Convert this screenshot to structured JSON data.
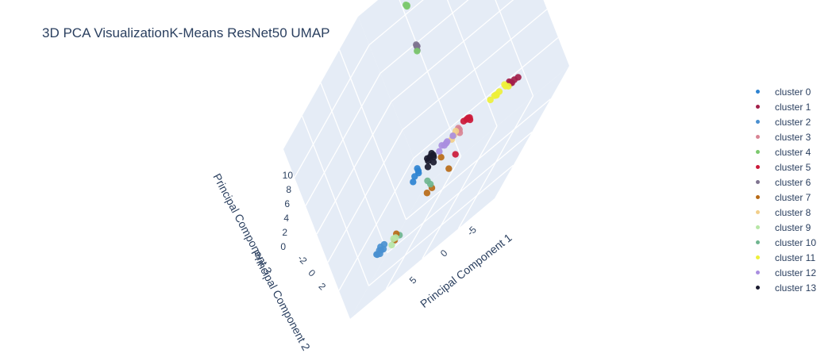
{
  "chart_data": {
    "type": "scatter",
    "title": "3D PCA VisualizationK-Means ResNet50 UMAP",
    "axes": {
      "x": {
        "title": "Principal Component 1",
        "ticks": [
          "5",
          "0",
          "-5"
        ]
      },
      "y": {
        "title": "Principal Component 2",
        "ticks": [
          "-2",
          "0",
          "2"
        ]
      },
      "z": {
        "title": "Principal Component 3",
        "ticks": [
          "0",
          "2",
          "4",
          "6",
          "8",
          "10"
        ]
      }
    },
    "legend_position": "right",
    "series": [
      {
        "name": "cluster 0",
        "color": "#2e83d1",
        "points": [
          [
            3.6,
            0.3,
            1.7
          ],
          [
            3.4,
            0.5,
            1.6
          ],
          [
            3.2,
            0.4,
            1.8
          ],
          [
            3.8,
            0.2,
            1.5
          ],
          [
            3.5,
            0.6,
            1.9
          ]
        ]
      },
      {
        "name": "cluster 1",
        "color": "#a3204a",
        "points": [
          [
            -6.2,
            2.4,
            1.4
          ],
          [
            -6.0,
            2.2,
            1.5
          ],
          [
            -6.5,
            2.5,
            1.3
          ],
          [
            -5.8,
            2.3,
            1.6
          ],
          [
            -6.3,
            2.1,
            1.5
          ]
        ]
      },
      {
        "name": "cluster 2",
        "color": "#4a90d0",
        "points": [
          [
            9.5,
            0.2,
            -1.0
          ],
          [
            9.6,
            0.4,
            -1.2
          ],
          [
            9.4,
            0.3,
            -0.9
          ],
          [
            9.7,
            0.1,
            -1.1
          ],
          [
            9.5,
            0.5,
            -1.3
          ],
          [
            9.6,
            0.0,
            -1.0
          ],
          [
            9.4,
            0.6,
            -1.1
          ],
          [
            9.7,
            0.3,
            -1.3
          ]
        ]
      },
      {
        "name": "cluster 3",
        "color": "#d98494",
        "points": [
          [
            -1.0,
            1.2,
            1.8
          ],
          [
            -1.2,
            1.0,
            1.7
          ],
          [
            -0.8,
            1.3,
            1.9
          ]
        ]
      },
      {
        "name": "cluster 4",
        "color": "#7cc96e",
        "points": [
          [
            3.6,
            4.0,
            10.8
          ],
          [
            3.7,
            4.1,
            10.6
          ],
          [
            3.5,
            4.0,
            10.7
          ],
          [
            4.1,
            3.9,
            7.4
          ]
        ]
      },
      {
        "name": "cluster 5",
        "color": "#cc1a3a",
        "points": [
          [
            -1.6,
            1.5,
            1.9
          ],
          [
            -1.8,
            1.6,
            1.8
          ],
          [
            -1.4,
            1.4,
            2.0
          ],
          [
            -1.9,
            1.5,
            1.7
          ],
          [
            -1.5,
            1.7,
            1.8
          ],
          [
            -0.6,
            0.6,
            0.8
          ]
        ]
      },
      {
        "name": "cluster 6",
        "color": "#7f7490",
        "points": [
          [
            3.8,
            3.8,
            7.8
          ],
          [
            3.9,
            3.9,
            7.7
          ],
          [
            3.9,
            3.8,
            7.5
          ],
          [
            3.8,
            3.8,
            7.9
          ]
        ]
      },
      {
        "name": "cluster 7",
        "color": "#b86a16",
        "points": [
          [
            1.3,
            0.9,
            1.2
          ],
          [
            2.6,
            0.0,
            0.2
          ],
          [
            2.4,
            0.3,
            0.1
          ],
          [
            5.5,
            -1.0,
            -0.2
          ],
          [
            5.6,
            -1.2,
            -0.4
          ],
          [
            0.7,
            0.7,
            0.2
          ]
        ]
      },
      {
        "name": "cluster 8",
        "color": "#f2cf8a",
        "points": [
          [
            -0.4,
            1.1,
            1.8
          ],
          [
            -0.2,
            1.0,
            1.7
          ],
          [
            -0.6,
            1.2,
            1.9
          ]
        ]
      },
      {
        "name": "cluster 9",
        "color": "#b7e6a6",
        "points": [
          [
            5.8,
            -1.1,
            -0.3
          ],
          [
            5.9,
            -1.3,
            -0.5
          ],
          [
            5.7,
            -1.0,
            -0.4
          ]
        ]
      },
      {
        "name": "cluster 10",
        "color": "#6fb58f",
        "points": [
          [
            3.0,
            0.6,
            0.6
          ],
          [
            2.7,
            0.5,
            0.3
          ],
          [
            5.4,
            -0.9,
            -0.5
          ]
        ]
      },
      {
        "name": "cluster 11",
        "color": "#eef03a",
        "points": [
          [
            -4.0,
            2.4,
            1.4
          ],
          [
            -4.5,
            2.3,
            1.5
          ],
          [
            -5.0,
            2.5,
            1.4
          ],
          [
            -3.5,
            2.2,
            1.5
          ],
          [
            -5.4,
            2.4,
            1.3
          ],
          [
            -4.8,
            2.6,
            1.5
          ],
          [
            -3.8,
            2.5,
            1.3
          ],
          [
            -4.2,
            2.1,
            1.6
          ]
        ]
      },
      {
        "name": "cluster 12",
        "color": "#a98ee0",
        "points": [
          [
            0.6,
            1.1,
            1.7
          ],
          [
            0.3,
            1.0,
            1.8
          ],
          [
            1.0,
            1.2,
            1.6
          ],
          [
            0.0,
            1.3,
            1.7
          ],
          [
            0.8,
            0.9,
            1.9
          ],
          [
            1.4,
            1.0,
            1.6
          ]
        ]
      },
      {
        "name": "cluster 13",
        "color": "#1a1a2e",
        "points": [
          [
            2.0,
            0.7,
            1.9
          ],
          [
            2.2,
            0.6,
            2.0
          ],
          [
            1.8,
            0.8,
            1.8
          ],
          [
            2.5,
            0.8,
            1.7
          ],
          [
            2.0,
            0.9,
            1.6
          ],
          [
            1.6,
            0.6,
            2.1
          ],
          [
            2.3,
            0.5,
            1.5
          ],
          [
            1.9,
            0.7,
            1.4
          ]
        ]
      }
    ]
  }
}
